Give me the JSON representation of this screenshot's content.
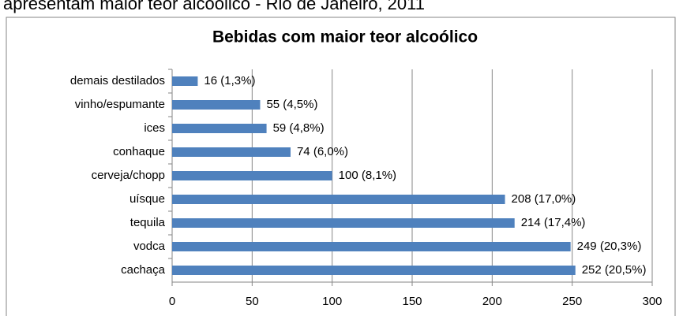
{
  "heading": "apresentam maior teor alcoólico - Rio de Janeiro, 2011",
  "chart_data": {
    "type": "bar",
    "orientation": "horizontal",
    "title": "Bebidas com maior teor alcoólico",
    "categories": [
      "demais destilados",
      "vinho/espumante",
      "ices",
      "conhaque",
      "cerveja/chopp",
      "uísque",
      "tequila",
      "vodca",
      "cachaça"
    ],
    "values": [
      16,
      55,
      59,
      74,
      100,
      208,
      214,
      249,
      252
    ],
    "value_labels": [
      "16 (1,3%)",
      "55 (4,5%)",
      "59 (4,8%)",
      "74 (6,0%)",
      "100 (8,1%)",
      "208 (17,0%)",
      "214 (17,4%)",
      "249 (20,3%)",
      "252 (20,5%)"
    ],
    "color": "#4f81bd",
    "xlim": [
      0,
      300
    ],
    "xticks": [
      0,
      50,
      100,
      150,
      200,
      250,
      300
    ],
    "grid": true
  }
}
